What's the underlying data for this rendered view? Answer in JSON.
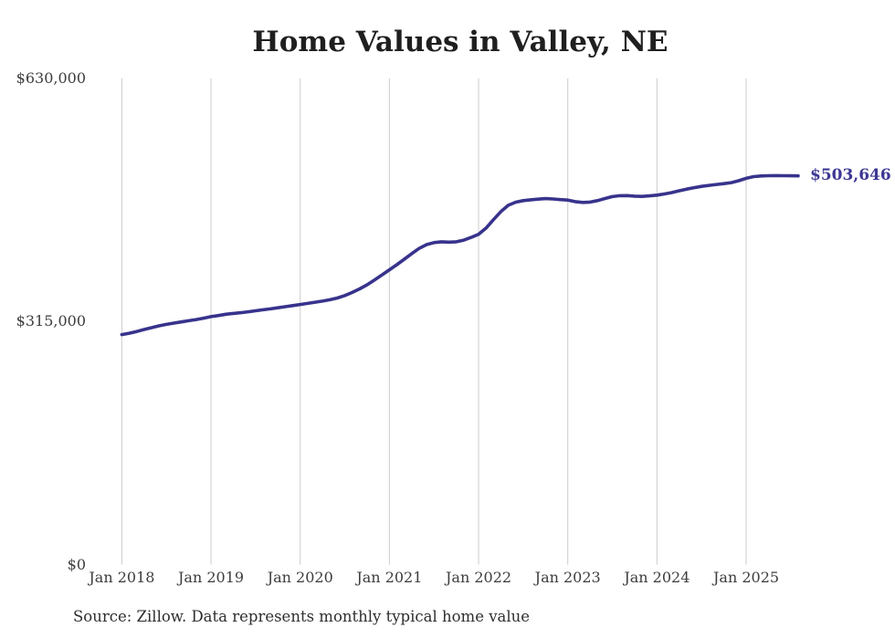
{
  "page": {
    "background": "#ffffff"
  },
  "chart_data": {
    "type": "line",
    "title": "Home Values in Valley, NE",
    "source_note": "Source: Zillow. Data represents monthly typical home value",
    "end_label": "$503,646",
    "x_frequency": "monthly",
    "x_start": "Jan 2018",
    "x_end": "Aug 2025",
    "x_tick_labels": [
      "Jan 2018",
      "Jan 2019",
      "Jan 2020",
      "Jan 2021",
      "Jan 2022",
      "Jan 2023",
      "Jan 2024",
      "Jan 2025"
    ],
    "y_ticks": [
      {
        "label": "$0",
        "value": 0
      },
      {
        "label": "$315,000",
        "value": 315000
      },
      {
        "label": "$630,000",
        "value": 630000
      }
    ],
    "y_max": 630000,
    "grid": "vertical-only",
    "legend": "none",
    "series": [
      {
        "name": "Typical home value",
        "color": "#38338C",
        "values": [
          298000,
          299800,
          302000,
          304600,
          307000,
          309300,
          311200,
          312900,
          314400,
          315900,
          317500,
          319300,
          321300,
          322700,
          324300,
          325400,
          326400,
          327500,
          328800,
          330100,
          331300,
          332700,
          334200,
          335600,
          337000,
          338400,
          339900,
          341400,
          343100,
          345400,
          348600,
          352600,
          357200,
          362500,
          368800,
          375300,
          381900,
          388600,
          395600,
          402900,
          409600,
          414600,
          417200,
          418200,
          417800,
          418200,
          420400,
          423900,
          427900,
          436000,
          446800,
          457400,
          465500,
          469600,
          471500,
          472600,
          473500,
          474100,
          473700,
          472900,
          472300,
          470300,
          469200,
          469700,
          471500,
          474300,
          476800,
          477900,
          478100,
          477400,
          477000,
          477700,
          478700,
          480200,
          482000,
          484300,
          486400,
          488300,
          490000,
          491300,
          492500,
          493600,
          494900,
          497300,
          500400,
          502600,
          503500,
          503800,
          503900,
          503800,
          503700,
          503646
        ]
      }
    ],
    "colors": {
      "line": "#38338C",
      "end_label": "#3D3894",
      "gridline": "#CCCCCC",
      "title": "#1F1F1F",
      "axis_label": "#3D3D3D",
      "source": "#2E2E2E"
    }
  }
}
